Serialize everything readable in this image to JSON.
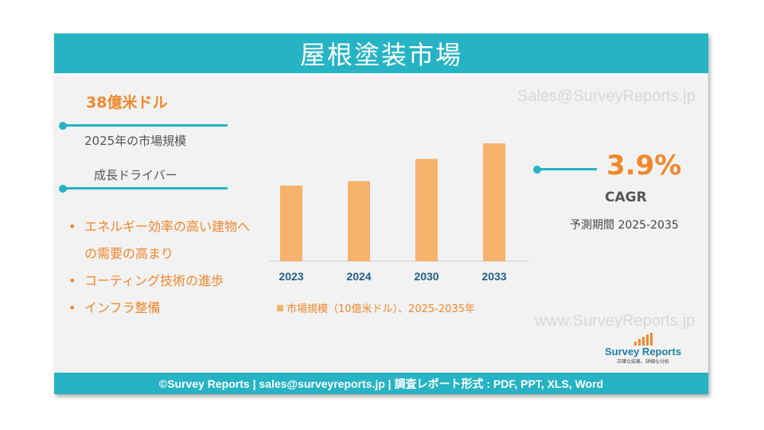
{
  "title": "屋根塗装市場",
  "market": {
    "value": "38億米ドル",
    "label": "2025年の市場規模"
  },
  "drivers": {
    "title": "成長ドライバー",
    "items": [
      "エネルギー効率の高い建物への需要の高まり",
      "コーティング技術の進歩",
      "インフラ整備"
    ]
  },
  "watermarks": [
    "Sales@SurveyReports.jp",
    "www.SurveyReports.jp"
  ],
  "cagr": {
    "value": "3.9%",
    "label": "CAGR",
    "period": "予測期間 2025-2035"
  },
  "logo": {
    "name": "Survey Reports",
    "tagline": "正確な結果、詳細な分析"
  },
  "footer": "©Survey Reports | sales@surveyreports.jp |  調査レポート形式 : PDF, PPT, XLS, Word",
  "colors": {
    "accent": "#26b3c4",
    "orange": "#f0882c",
    "bar": "#f6b26b"
  },
  "chart_data": {
    "type": "bar",
    "categories": [
      "2023",
      "2024",
      "2030",
      "2033"
    ],
    "values": [
      3.4,
      3.6,
      4.6,
      5.3
    ],
    "series": [
      {
        "name": "市場規模（10億米ドル）、2025-2035年",
        "values": [
          3.4,
          3.6,
          4.6,
          5.3
        ]
      }
    ],
    "legend": "bottom",
    "grid": false
  }
}
